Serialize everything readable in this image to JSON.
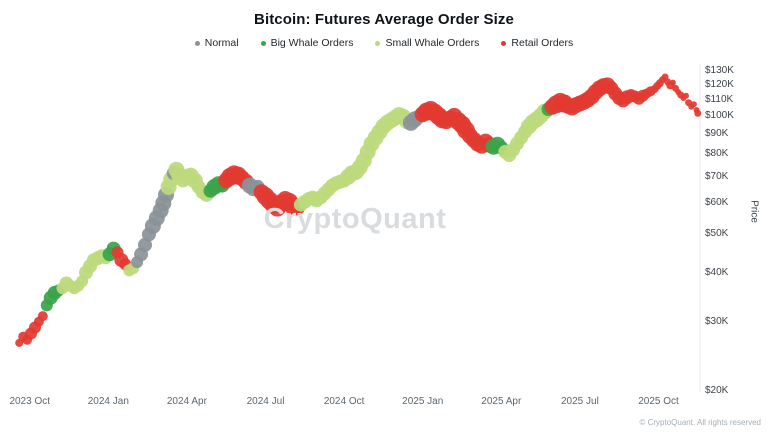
{
  "title": "Bitcoin: Futures Average Order Size",
  "watermark": "CryptoQuant",
  "footer": "© CryptoQuant. All rights reserved",
  "chart_data": {
    "type": "scatter",
    "title": "Bitcoin: Futures Average Order Size",
    "xlabel": "",
    "ylabel": "Price",
    "yscale": "log",
    "ylim": [
      20,
      130
    ],
    "x_unit": "months since 2023 Oct",
    "y_unit": "USD thousands",
    "legend_position": "top",
    "grid": false,
    "categories": [
      {
        "key": "n",
        "label": "Normal",
        "color": "#8b9299"
      },
      {
        "key": "b",
        "label": "Big Whale Orders",
        "color": "#3aa449"
      },
      {
        "key": "s",
        "label": "Small Whale Orders",
        "color": "#bcd97d"
      },
      {
        "key": "r",
        "label": "Retail Orders",
        "color": "#e23a32"
      }
    ],
    "y_ticks": [
      {
        "v": 130,
        "label": "$130K"
      },
      {
        "v": 120,
        "label": "$120K"
      },
      {
        "v": 110,
        "label": "$110K"
      },
      {
        "v": 100,
        "label": "$100K"
      },
      {
        "v": 90,
        "label": "$90K"
      },
      {
        "v": 80,
        "label": "$80K"
      },
      {
        "v": 70,
        "label": "$70K"
      },
      {
        "v": 60,
        "label": "$60K"
      },
      {
        "v": 50,
        "label": "$50K"
      },
      {
        "v": 40,
        "label": "$40K"
      },
      {
        "v": 30,
        "label": "$30K"
      },
      {
        "v": 20,
        "label": "$20K"
      }
    ],
    "x_ticks": [
      {
        "t": 0,
        "label": "2023 Oct"
      },
      {
        "t": 3,
        "label": "2024 Jan"
      },
      {
        "t": 6,
        "label": "2024 Apr"
      },
      {
        "t": 9,
        "label": "2024 Jul"
      },
      {
        "t": 12,
        "label": "2024 Oct"
      },
      {
        "t": 15,
        "label": "2025 Jan"
      },
      {
        "t": 18,
        "label": "2025 Apr"
      },
      {
        "t": 21,
        "label": "2025 Jul"
      },
      {
        "t": 24,
        "label": "2025 Oct"
      }
    ],
    "points": [
      [
        -0.4,
        26.5,
        "r",
        4
      ],
      [
        -0.25,
        27.5,
        "r",
        5
      ],
      [
        -0.1,
        27,
        "r",
        5
      ],
      [
        0.05,
        28,
        "r",
        6
      ],
      [
        0.2,
        29,
        "r",
        6
      ],
      [
        0.35,
        30,
        "r",
        5
      ],
      [
        0.5,
        31,
        "r",
        5
      ],
      [
        0.65,
        33,
        "b",
        6
      ],
      [
        0.8,
        34.5,
        "b",
        7
      ],
      [
        0.95,
        35.5,
        "b",
        7
      ],
      [
        1.1,
        36,
        "b",
        6
      ],
      [
        1.25,
        36.5,
        "s",
        6
      ],
      [
        1.4,
        37.5,
        "s",
        7
      ],
      [
        1.55,
        37,
        "s",
        6
      ],
      [
        1.7,
        36.5,
        "s",
        6
      ],
      [
        1.85,
        37,
        "s",
        6
      ],
      [
        2.0,
        38,
        "s",
        6
      ],
      [
        2.15,
        40,
        "s",
        7
      ],
      [
        2.3,
        41.5,
        "s",
        7
      ],
      [
        2.45,
        43,
        "s",
        7
      ],
      [
        2.6,
        43.5,
        "s",
        7
      ],
      [
        2.75,
        44,
        "s",
        7
      ],
      [
        2.9,
        43.5,
        "s",
        6
      ],
      [
        3.05,
        44.5,
        "b",
        7
      ],
      [
        3.2,
        46,
        "b",
        7
      ],
      [
        3.35,
        45,
        "r",
        6
      ],
      [
        3.5,
        43,
        "r",
        7
      ],
      [
        3.65,
        42,
        "r",
        6
      ],
      [
        3.8,
        40.5,
        "s",
        6
      ],
      [
        3.95,
        41,
        "s",
        6
      ],
      [
        4.1,
        42.5,
        "n",
        6
      ],
      [
        4.25,
        44.5,
        "n",
        7
      ],
      [
        4.4,
        47,
        "n",
        7
      ],
      [
        4.55,
        50,
        "n",
        7
      ],
      [
        4.7,
        52.5,
        "n",
        8
      ],
      [
        4.85,
        55,
        "n",
        8
      ],
      [
        5.0,
        57.5,
        "n",
        8
      ],
      [
        5.1,
        60,
        "n",
        8
      ],
      [
        5.2,
        63,
        "n",
        8
      ],
      [
        5.3,
        66,
        "s",
        8
      ],
      [
        5.4,
        69,
        "s",
        8
      ],
      [
        5.5,
        71.5,
        "n",
        7
      ],
      [
        5.6,
        73,
        "s",
        8
      ],
      [
        5.7,
        70.5,
        "s",
        8
      ],
      [
        5.85,
        69,
        "s",
        8
      ],
      [
        6.0,
        70,
        "s",
        8
      ],
      [
        6.15,
        70.5,
        "s",
        8
      ],
      [
        6.3,
        68.5,
        "s",
        8
      ],
      [
        6.45,
        66,
        "s",
        7
      ],
      [
        6.6,
        64,
        "s",
        7
      ],
      [
        6.75,
        63,
        "s",
        7
      ],
      [
        6.9,
        64.5,
        "b",
        7
      ],
      [
        7.05,
        66,
        "b",
        8
      ],
      [
        7.2,
        67,
        "b",
        8
      ],
      [
        7.35,
        66.5,
        "b",
        7
      ],
      [
        7.5,
        68.5,
        "r",
        8
      ],
      [
        7.65,
        70,
        "r",
        9
      ],
      [
        7.8,
        71,
        "r",
        9
      ],
      [
        7.95,
        70.5,
        "r",
        9
      ],
      [
        8.1,
        69.5,
        "r",
        8
      ],
      [
        8.25,
        68,
        "r",
        8
      ],
      [
        8.4,
        66.5,
        "n",
        8
      ],
      [
        8.55,
        65.5,
        "n",
        8
      ],
      [
        8.7,
        66,
        "n",
        7
      ],
      [
        8.85,
        64,
        "r",
        8
      ],
      [
        9.0,
        62.5,
        "r",
        9
      ],
      [
        9.15,
        61,
        "r",
        9
      ],
      [
        9.3,
        59.5,
        "r",
        9
      ],
      [
        9.45,
        58.5,
        "r",
        9
      ],
      [
        9.6,
        60,
        "r",
        9
      ],
      [
        9.75,
        61.5,
        "r",
        8
      ],
      [
        9.9,
        60.5,
        "r",
        9
      ],
      [
        10.05,
        59,
        "r",
        9
      ],
      [
        10.2,
        58.5,
        "r",
        8
      ],
      [
        10.35,
        59.5,
        "s",
        7
      ],
      [
        10.5,
        60.5,
        "s",
        7
      ],
      [
        10.65,
        61.5,
        "s",
        7
      ],
      [
        10.8,
        62,
        "s",
        7
      ],
      [
        10.95,
        61,
        "s",
        7
      ],
      [
        11.1,
        62,
        "s",
        7
      ],
      [
        11.25,
        63.5,
        "s",
        7
      ],
      [
        11.4,
        65,
        "s",
        7
      ],
      [
        11.55,
        66.5,
        "s",
        7
      ],
      [
        11.7,
        67.5,
        "s",
        7
      ],
      [
        11.85,
        68,
        "s",
        7
      ],
      [
        12.0,
        68.5,
        "s",
        7
      ],
      [
        12.15,
        70,
        "s",
        8
      ],
      [
        12.3,
        71.5,
        "s",
        8
      ],
      [
        12.45,
        72,
        "s",
        8
      ],
      [
        12.6,
        74,
        "s",
        8
      ],
      [
        12.75,
        77,
        "s",
        8
      ],
      [
        12.9,
        81,
        "s",
        8
      ],
      [
        13.05,
        85,
        "s",
        8
      ],
      [
        13.2,
        88,
        "s",
        8
      ],
      [
        13.35,
        91,
        "s",
        8
      ],
      [
        13.5,
        94,
        "s",
        8
      ],
      [
        13.65,
        96,
        "s",
        8
      ],
      [
        13.8,
        97.5,
        "s",
        8
      ],
      [
        13.95,
        99,
        "s",
        8
      ],
      [
        14.1,
        100.5,
        "s",
        8
      ],
      [
        14.25,
        99.5,
        "s",
        8
      ],
      [
        14.4,
        97,
        "s",
        8
      ],
      [
        14.55,
        96,
        "n",
        8
      ],
      [
        14.7,
        98,
        "n",
        8
      ],
      [
        14.85,
        99.5,
        "n",
        7
      ],
      [
        15.0,
        101,
        "r",
        8
      ],
      [
        15.15,
        102.5,
        "r",
        9
      ],
      [
        15.3,
        103.5,
        "r",
        9
      ],
      [
        15.45,
        102,
        "r",
        9
      ],
      [
        15.6,
        100,
        "r",
        9
      ],
      [
        15.75,
        98,
        "r",
        9
      ],
      [
        15.9,
        97,
        "r",
        8
      ],
      [
        16.05,
        98.5,
        "r",
        8
      ],
      [
        16.2,
        100,
        "r",
        8
      ],
      [
        16.35,
        97,
        "r",
        9
      ],
      [
        16.5,
        95,
        "r",
        9
      ],
      [
        16.65,
        92,
        "r",
        9
      ],
      [
        16.8,
        89,
        "r",
        8
      ],
      [
        16.95,
        87,
        "r",
        8
      ],
      [
        17.1,
        85,
        "r",
        8
      ],
      [
        17.25,
        84,
        "r",
        8
      ],
      [
        17.4,
        86,
        "r",
        8
      ],
      [
        17.55,
        84.5,
        "r",
        8
      ],
      [
        17.7,
        83.5,
        "b",
        8
      ],
      [
        17.85,
        84.5,
        "b",
        8
      ],
      [
        18.0,
        83,
        "b",
        7
      ],
      [
        18.15,
        81,
        "s",
        7
      ],
      [
        18.3,
        79.5,
        "s",
        7
      ],
      [
        18.45,
        82,
        "s",
        7
      ],
      [
        18.6,
        85,
        "s",
        7
      ],
      [
        18.75,
        88,
        "s",
        7
      ],
      [
        18.9,
        91,
        "s",
        7
      ],
      [
        19.05,
        94,
        "s",
        8
      ],
      [
        19.2,
        96.5,
        "s",
        8
      ],
      [
        19.35,
        98,
        "s",
        8
      ],
      [
        19.5,
        100,
        "s",
        8
      ],
      [
        19.65,
        102.5,
        "s",
        8
      ],
      [
        19.8,
        104,
        "b",
        7
      ],
      [
        19.95,
        105.5,
        "r",
        8
      ],
      [
        20.1,
        107,
        "r",
        9
      ],
      [
        20.25,
        108.5,
        "r",
        9
      ],
      [
        20.4,
        107.5,
        "r",
        9
      ],
      [
        20.55,
        106,
        "r",
        8
      ],
      [
        20.7,
        105,
        "r",
        8
      ],
      [
        20.85,
        106.5,
        "r",
        8
      ],
      [
        21.0,
        107.5,
        "r",
        8
      ],
      [
        21.15,
        108.5,
        "r",
        8
      ],
      [
        21.3,
        110,
        "r",
        8
      ],
      [
        21.45,
        112,
        "r",
        8
      ],
      [
        21.6,
        115,
        "r",
        8
      ],
      [
        21.75,
        117.5,
        "r",
        8
      ],
      [
        21.9,
        119,
        "r",
        8
      ],
      [
        22.05,
        119.5,
        "r",
        8
      ],
      [
        22.2,
        117.5,
        "r",
        7
      ],
      [
        22.35,
        114,
        "r",
        7
      ],
      [
        22.5,
        111,
        "r",
        7
      ],
      [
        22.65,
        109.5,
        "r",
        7
      ],
      [
        22.8,
        111.5,
        "r",
        7
      ],
      [
        22.95,
        113,
        "r",
        6
      ],
      [
        23.1,
        112,
        "r",
        6
      ],
      [
        23.25,
        110.5,
        "r",
        6
      ],
      [
        23.4,
        112.5,
        "r",
        6
      ],
      [
        23.55,
        114,
        "r",
        5
      ],
      [
        23.7,
        115.5,
        "r",
        5
      ],
      [
        23.85,
        117,
        "r",
        4
      ],
      [
        23.95,
        119,
        "r",
        4
      ],
      [
        24.05,
        121,
        "r",
        4
      ],
      [
        24.15,
        123.5,
        "r",
        3.5
      ],
      [
        24.25,
        125.5,
        "r",
        3.5
      ],
      [
        24.35,
        122,
        "r",
        3.5
      ],
      [
        24.45,
        119.5,
        "r",
        4
      ],
      [
        24.55,
        121.5,
        "r",
        3
      ],
      [
        24.65,
        117.5,
        "r",
        3.5
      ],
      [
        24.75,
        115,
        "r",
        3
      ],
      [
        24.85,
        113,
        "r",
        3.5
      ],
      [
        24.95,
        111,
        "r",
        3
      ],
      [
        25.05,
        112.5,
        "r",
        3
      ],
      [
        25.15,
        108,
        "r",
        3.5
      ],
      [
        25.25,
        105.5,
        "r",
        3
      ],
      [
        25.35,
        107,
        "r",
        3
      ],
      [
        25.45,
        103.5,
        "r",
        3
      ],
      [
        25.5,
        101.5,
        "r",
        3.5
      ]
    ]
  }
}
